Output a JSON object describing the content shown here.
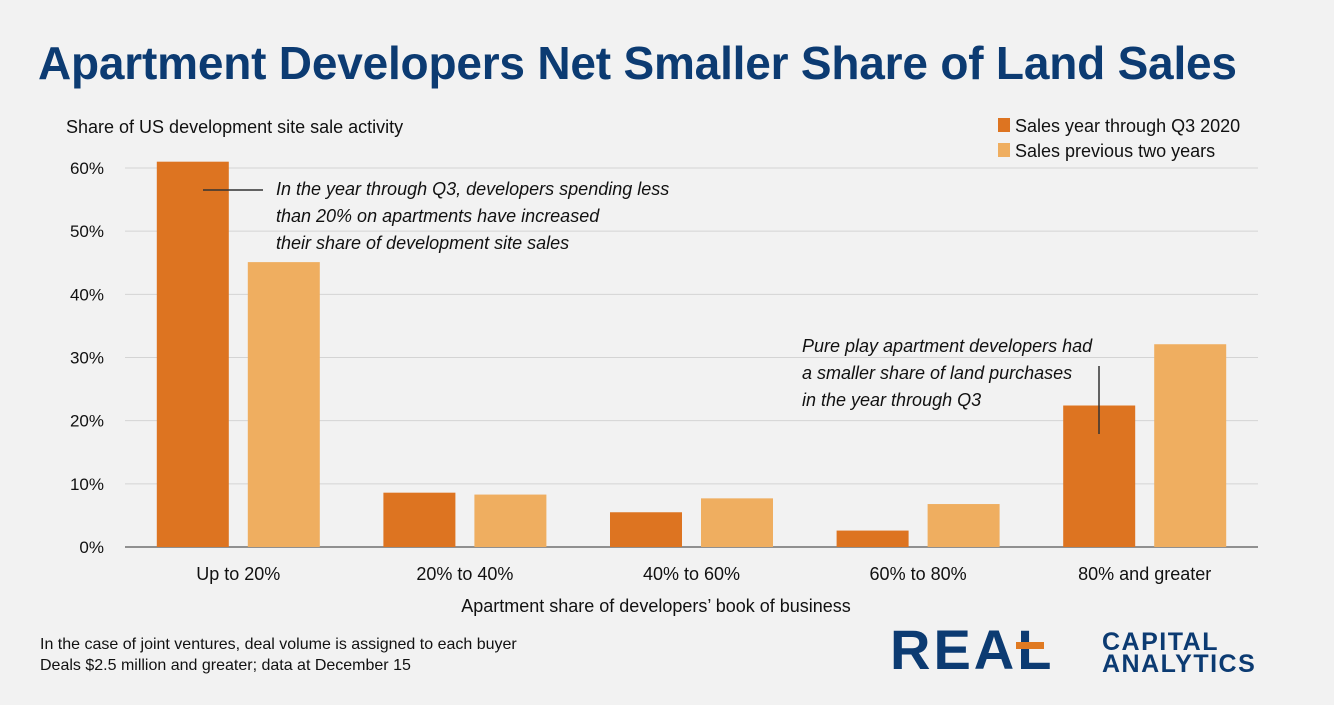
{
  "title": "Apartment Developers Net Smaller Share of Land Sales",
  "chart_data": {
    "type": "bar",
    "title": "Apartment Developers Net Smaller Share of Land Sales",
    "ylabel": "Share of US development site sale activity",
    "xlabel": "Apartment share of developers’ book of business",
    "categories": [
      "Up to 20%",
      "20% to 40%",
      "40% to 60%",
      "60% to 80%",
      "80% and greater"
    ],
    "series": [
      {
        "name": "Sales year through Q3 2020",
        "values": [
          61,
          8.6,
          5.5,
          2.6,
          22.4
        ],
        "color": "#dd7421"
      },
      {
        "name": "Sales previous two years",
        "values": [
          45.1,
          8.3,
          7.7,
          6.8,
          32.1
        ],
        "color": "#efae60"
      }
    ],
    "ylim": [
      0,
      60
    ],
    "yticks": [
      "0%",
      "10%",
      "20%",
      "30%",
      "40%",
      "50%",
      "60%"
    ],
    "grid": true,
    "legend": "top-right",
    "annotations": [
      {
        "lines": [
          "In the year through Q3, developers spending less",
          "than 20% on apartments have increased",
          "their share of development site sales"
        ]
      },
      {
        "lines": [
          "Pure play apartment developers had",
          "a smaller share of land purchases",
          "in the year through Q3"
        ]
      }
    ]
  },
  "footnotes": [
    "In the case of joint ventures, deal volume is assigned to each buyer",
    "Deals $2.5 million and greater; data at December 15"
  ],
  "logo": {
    "word": "REAL",
    "line1": "CAPITAL",
    "line2": "ANALYTICS"
  }
}
